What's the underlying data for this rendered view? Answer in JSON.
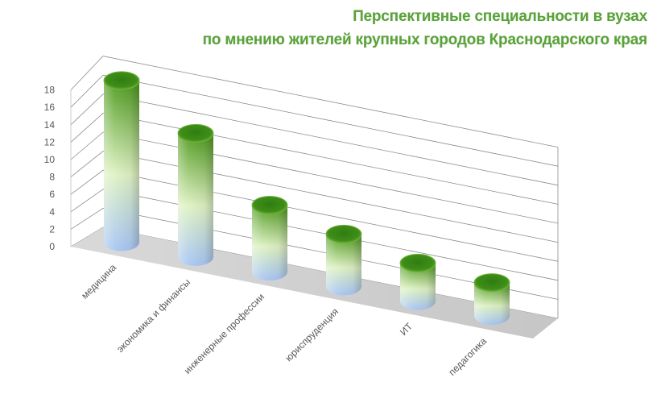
{
  "chart_data": {
    "type": "bar",
    "style": "3d-cylinder",
    "title_lines": [
      "Перспективные специальности в вузах",
      "по мнению жителей крупных городов Краснодарского края"
    ],
    "categories": [
      "медицина",
      "экономика и финансы",
      "инженерные профессии",
      "юриспруденция",
      "ИТ",
      "педагогика"
    ],
    "values": [
      17,
      13,
      7,
      5.5,
      4,
      3.5
    ],
    "yticks": [
      "0",
      "2",
      "4",
      "6",
      "8",
      "10",
      "12",
      "14",
      "16",
      "18"
    ],
    "ylim": [
      0,
      18
    ],
    "xlabel": "",
    "ylabel": "",
    "grid": true,
    "legend": "none",
    "colors": {
      "title": "#5aa23a",
      "bar_top": "#4f9a1e",
      "bar_mid": "#c9ec8a",
      "bar_bottom": "#a9c6f5",
      "floor": "#d4d4d4",
      "grid": "#8c8c8c",
      "text": "#595959"
    }
  }
}
